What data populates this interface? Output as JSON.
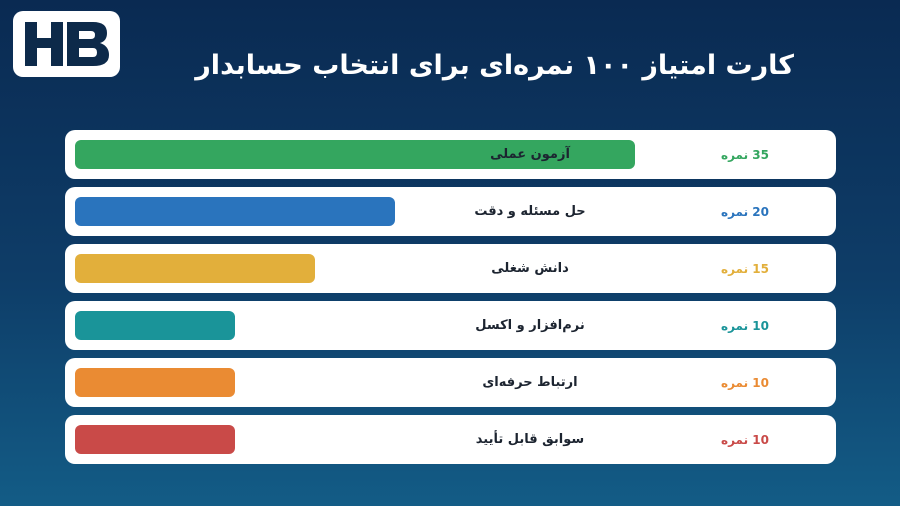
{
  "logo": {
    "text": "HB"
  },
  "title": "کارت امتیاز ۱۰۰ نمره‌ای برای انتخاب حسابدار",
  "rows": [
    {
      "label": "آزمون عملی",
      "score": "35 نمره",
      "value": 35,
      "color": "#34a65f"
    },
    {
      "label": "حل مسئله و دقت",
      "score": "20 نمره",
      "value": 20,
      "color": "#2a74bd"
    },
    {
      "label": "دانش شغلی",
      "score": "15 نمره",
      "value": 15,
      "color": "#e2af3b"
    },
    {
      "label": "نرم‌افزار و اکسل",
      "score": "10 نمره",
      "value": 10,
      "color": "#1a9499"
    },
    {
      "label": "ارتباط حرفه‌ای",
      "score": "10 نمره",
      "value": 10,
      "color": "#ea8b33"
    },
    {
      "label": "سوابق قابل تأیید",
      "score": "10 نمره",
      "value": 10,
      "color": "#c94a48"
    }
  ]
}
